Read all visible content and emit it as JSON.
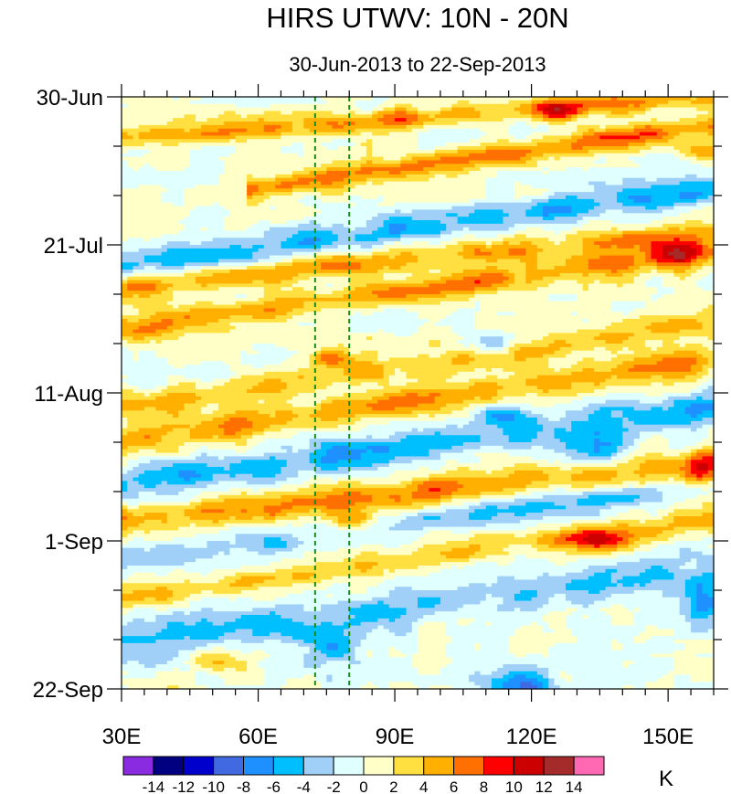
{
  "chart_data": {
    "type": "heatmap",
    "title": "HIRS UTWV: 10N - 20N",
    "subtitle": "30-Jun-2013 to 22-Sep-2013",
    "x_axis": {
      "range": [
        30,
        160
      ],
      "ticks": [
        30,
        60,
        90,
        120,
        150
      ],
      "tick_labels": [
        "30E",
        "60E",
        "90E",
        "120E",
        "150E"
      ],
      "minor_step": 5
    },
    "y_axis": {
      "range_days": [
        0,
        84
      ],
      "ticks_days": [
        0,
        21,
        42,
        63,
        84
      ],
      "tick_labels": [
        "30-Jun",
        "21-Jul",
        "11-Aug",
        "1-Sep",
        "22-Sep"
      ],
      "minor_step_days": 7,
      "direction": "time increases downward"
    },
    "reference_lines": [
      {
        "x": 72.5,
        "style": "dashed",
        "color": "#1a8a1a"
      },
      {
        "x": 80,
        "style": "dashed",
        "color": "#1a8a1a"
      }
    ],
    "colorbar": {
      "unit": "K",
      "boundaries": [
        -16,
        -14,
        -12,
        -10,
        -8,
        -6,
        -4,
        -2,
        0,
        2,
        4,
        6,
        8,
        10,
        12,
        14,
        16
      ],
      "tick_labels": [
        "-14",
        "-12",
        "-10",
        "-8",
        "-6",
        "-4",
        "-2",
        "0",
        "2",
        "4",
        "6",
        "8",
        "10",
        "12",
        "14"
      ],
      "colors": [
        "#8a2be2",
        "#000080",
        "#0000cd",
        "#4169e1",
        "#1e90ff",
        "#00bfff",
        "#a0d0f8",
        "#e0ffff",
        "#ffffc8",
        "#ffe040",
        "#ffb000",
        "#ff7000",
        "#ff0000",
        "#cd0000",
        "#a52a2a",
        "#ff69b4"
      ]
    },
    "propagating_features": [
      {
        "start": [
          30,
          6
        ],
        "end": [
          160,
          0
        ],
        "amplitude": 5.5,
        "width_days": 1.5
      },
      {
        "start": [
          60,
          13
        ],
        "end": [
          160,
          4
        ],
        "amplitude": 6,
        "width_days": 1.6
      },
      {
        "start": [
          30,
          24
        ],
        "end": [
          160,
          13
        ],
        "amplitude": -5,
        "width_days": 2
      },
      {
        "start": [
          30,
          27
        ],
        "end": [
          160,
          19
        ],
        "amplitude": 5,
        "width_days": 1.8
      },
      {
        "start": [
          30,
          33
        ],
        "end": [
          160,
          22
        ],
        "amplitude": 5.5,
        "width_days": 1.8
      },
      {
        "start": [
          30,
          44
        ],
        "end": [
          160,
          32
        ],
        "amplitude": 4,
        "width_days": 2
      },
      {
        "start": [
          30,
          49
        ],
        "end": [
          160,
          37
        ],
        "amplitude": 5,
        "width_days": 2.2
      },
      {
        "start": [
          30,
          55
        ],
        "end": [
          160,
          44
        ],
        "amplitude": -5,
        "width_days": 2.4
      },
      {
        "start": [
          30,
          60
        ],
        "end": [
          160,
          52
        ],
        "amplitude": 5.5,
        "width_days": 2.2
      },
      {
        "start": [
          30,
          66
        ],
        "end": [
          160,
          55
        ],
        "amplitude": -3.5,
        "width_days": 1.8
      },
      {
        "start": [
          30,
          71
        ],
        "end": [
          160,
          60
        ],
        "amplitude": 4,
        "width_days": 1.8
      },
      {
        "start": [
          30,
          77
        ],
        "end": [
          160,
          67
        ],
        "amplitude": -4,
        "width_days": 2.5
      }
    ],
    "localized_features": [
      {
        "center": [
          152,
          22
        ],
        "amplitude": 9,
        "radius_lon": 6,
        "radius_days": 2.2
      },
      {
        "center": [
          135,
          63
        ],
        "amplitude": 8.5,
        "radius_lon": 8,
        "radius_days": 1.8
      },
      {
        "center": [
          80,
          60
        ],
        "amplitude": 7,
        "radius_lon": 5,
        "radius_days": 1.3
      },
      {
        "center": [
          75,
          37
        ],
        "amplitude": 6,
        "radius_lon": 5,
        "radius_days": 1.2
      },
      {
        "center": [
          157,
          53
        ],
        "amplitude": 7,
        "radius_lon": 4,
        "radius_days": 2.5
      },
      {
        "center": [
          118,
          84
        ],
        "amplitude": -8,
        "radius_lon": 8,
        "radius_days": 2.2
      },
      {
        "center": [
          112,
          35
        ],
        "amplitude": -7,
        "radius_lon": 4,
        "radius_days": 1.5
      },
      {
        "center": [
          113,
          45
        ],
        "amplitude": -6,
        "radius_lon": 5,
        "radius_days": 1.5
      },
      {
        "center": [
          135,
          50
        ],
        "amplitude": -6,
        "radius_lon": 7,
        "radius_days": 2.5
      },
      {
        "center": [
          158,
          72
        ],
        "amplitude": -6,
        "radius_lon": 4,
        "radius_days": 3
      },
      {
        "center": [
          75,
          78
        ],
        "amplitude": -5,
        "radius_lon": 8,
        "radius_days": 3
      },
      {
        "center": [
          158,
          8
        ],
        "amplitude": 5,
        "radius_lon": 5,
        "radius_days": 1.5
      },
      {
        "center": [
          125,
          2
        ],
        "amplitude": 5,
        "radius_lon": 6,
        "radius_days": 1.5
      },
      {
        "center": [
          40,
          85
        ],
        "amplitude": 4,
        "radius_lon": 6,
        "radius_days": 1.5
      },
      {
        "center": [
          50,
          80
        ],
        "amplitude": 4.5,
        "radius_lon": 5,
        "radius_days": 1.5
      }
    ]
  }
}
